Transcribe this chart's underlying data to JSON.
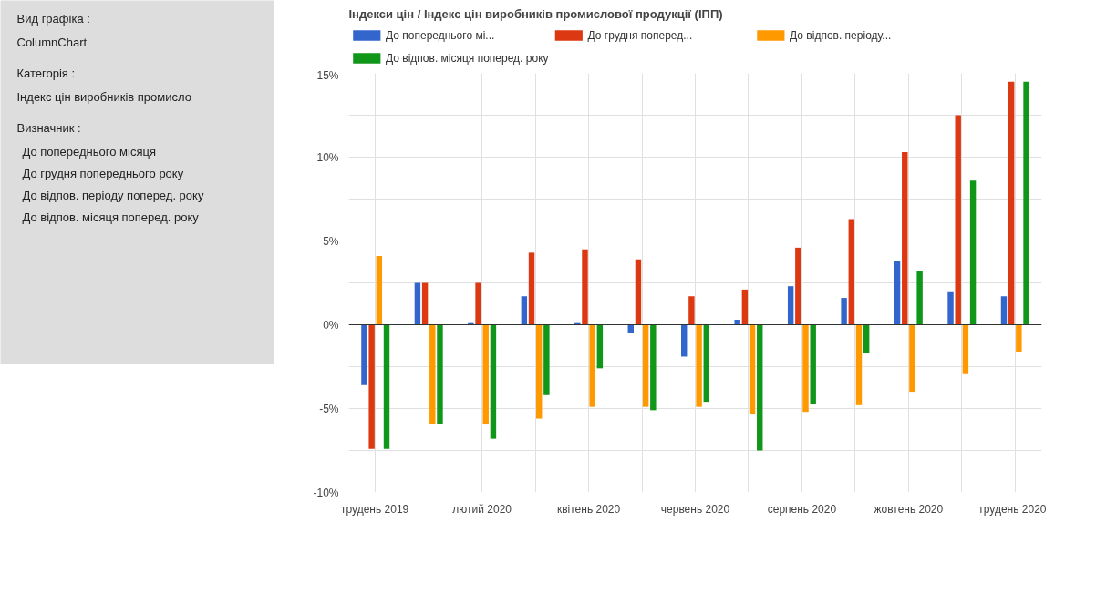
{
  "chart_data": [
    {
      "type": "other",
      "annotations": [
        "Вид графіка :",
        "ColumnChart",
        "Категорія :",
        "Індекс цін виробників промисло",
        "Визначник :",
        "До попереднього місяця",
        "До грудня попереднього року",
        "До відпов. періоду поперед. року",
        "До відпов. місяця поперед. року"
      ]
    },
    {
      "type": "bar",
      "title": "Індекси цін / Індекс цін виробників промислової продукції (ІПП)",
      "categories": [
        "грудень 2019",
        null,
        "лютий 2020",
        null,
        "квітень 2020",
        null,
        "червень 2020",
        null,
        "серпень 2020",
        null,
        "жовтень 2020",
        null,
        "грудень 2020"
      ],
      "series": [
        {
          "name": "До попереднього мі...",
          "color": "#3366cc",
          "values": [
            -3.6,
            2.5,
            0.1,
            1.7,
            0.1,
            -0.5,
            -1.9,
            0.3,
            2.3,
            1.6,
            3.8,
            2.0,
            1.7
          ]
        },
        {
          "name": "До грудня поперед...",
          "color": "#dc3912",
          "values": [
            -7.4,
            2.5,
            2.5,
            4.3,
            4.5,
            3.9,
            1.7,
            2.1,
            4.6,
            6.3,
            10.3,
            12.5,
            14.5
          ]
        },
        {
          "name": "До відпов. періоду...",
          "color": "#ff9900",
          "values": [
            4.1,
            -5.9,
            -5.9,
            -5.6,
            -4.9,
            -4.9,
            -4.9,
            -5.3,
            -5.2,
            -4.8,
            -4.0,
            -2.9,
            -1.6
          ]
        },
        {
          "name": "До відпов. місяця поперед. року",
          "color": "#109618",
          "values": [
            -7.4,
            -5.9,
            -6.8,
            -4.2,
            -2.6,
            -5.1,
            -4.6,
            -7.5,
            -4.7,
            -1.7,
            3.2,
            8.6,
            14.5
          ]
        }
      ],
      "ylim": [
        -10,
        15
      ],
      "yticks": [
        {
          "value": -10,
          "label": "-10%"
        },
        {
          "value": -7.5,
          "label": null
        },
        {
          "value": -5,
          "label": "-5%"
        },
        {
          "value": -2.5,
          "label": null
        },
        {
          "value": 0,
          "label": "0%"
        },
        {
          "value": 2.5,
          "label": null
        },
        {
          "value": 5,
          "label": "5%"
        },
        {
          "value": 7.5,
          "label": null
        },
        {
          "value": 10,
          "label": "10%"
        },
        {
          "value": 12.5,
          "label": null
        },
        {
          "value": 15,
          "label": "15%"
        }
      ],
      "grid": true,
      "legend": "top"
    }
  ]
}
